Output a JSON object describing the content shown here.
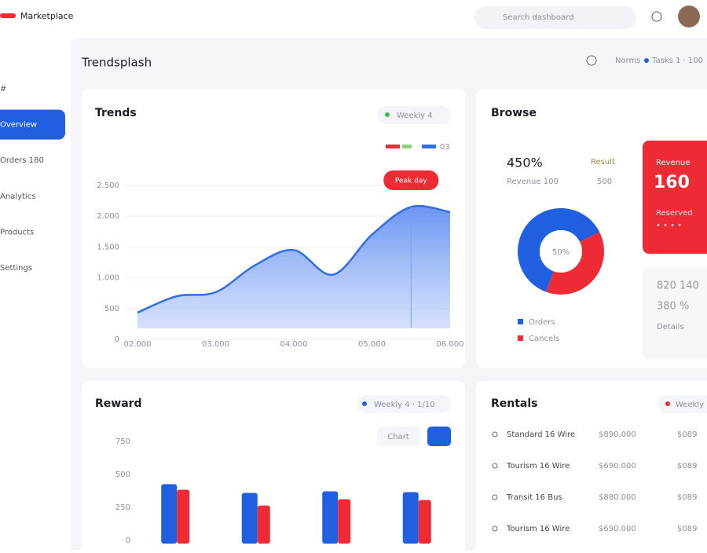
{
  "header": {
    "brand": "Marketplace",
    "search": "Search dashboard"
  },
  "sidebar": {
    "items": [
      "#",
      "Overview",
      "Orders 180",
      "Analytics",
      "Products",
      "Settings"
    ],
    "active": 1
  },
  "page": {
    "title": "Trendsplash",
    "status": "Norms",
    "tasks": "Tasks 1 · 100"
  },
  "trend_card": {
    "filter": "Weekly 4",
    "annotation": "Peak day"
  },
  "transit_card": {
    "filter": "Browse",
    "stat": "450%",
    "stat_label": "Revenue 100",
    "result": "Result",
    "result_value": "500",
    "highlight": {
      "label": "Revenue",
      "value": "160",
      "note": "Reserved",
      "dots": "• • • •"
    },
    "details": {
      "line1": "820 140",
      "line2": "380 %",
      "line3": "Details"
    }
  },
  "reward_card": {
    "filter": "Weekly 4 · 1/10",
    "button": "Chart"
  },
  "rentals": {
    "title": "Rentals",
    "filter": "Weekly",
    "rows": [
      [
        "Standard 16 Wire",
        "$890.000",
        "$089"
      ],
      [
        "Tourism 16 Wire",
        "$690.000",
        "$089"
      ],
      [
        "Transit 16 Bus",
        "$880.000",
        "$089"
      ],
      [
        "Tourism 16 Wire",
        "$690.000",
        "$089"
      ]
    ]
  },
  "chart_data": [
    {
      "type": "area",
      "title": "Trends",
      "x": [
        0,
        1,
        2,
        3,
        4,
        5,
        6,
        7,
        8
      ],
      "series": [
        {
          "name": "03",
          "color": "#2f6fe8",
          "values": [
            434,
            700,
            765,
            1200,
            1450,
            1050,
            1700,
            2150,
            2066
          ]
        }
      ],
      "xlim": [
        0,
        8
      ],
      "xticks": [
        {
          "value": 0,
          "label": "02.000"
        },
        {
          "value": 2,
          "label": "03.000"
        },
        {
          "value": 4,
          "label": "04.000"
        },
        {
          "value": 6,
          "label": "05.000"
        },
        {
          "value": 8,
          "label": "06.000"
        }
      ],
      "ylim": [
        0,
        2500
      ],
      "yticks": [
        0,
        500,
        {
          "value": 1000,
          "label": "1.000"
        },
        {
          "value": 1500,
          "label": "1.500"
        },
        {
          "value": 2000,
          "label": "2.000"
        },
        {
          "value": 2500,
          "label": "2.500"
        }
      ],
      "grid": true
    },
    {
      "type": "donut",
      "center_label": "50%",
      "categories": [
        "Orders",
        "Cancels"
      ],
      "values": [
        62,
        38
      ],
      "colors": [
        "#1f5fe0",
        "#ee2b34"
      ]
    },
    {
      "type": "bar",
      "title": "Reward",
      "categories": [
        null,
        null,
        null,
        null
      ],
      "series": [
        {
          "color": "#1f5fe0",
          "values": [
            450,
            384,
            396,
            390
          ]
        },
        {
          "color": "#ee2b34",
          "values": [
            408,
            288,
            336,
            330
          ]
        }
      ],
      "ylim": [
        0,
        800
      ],
      "yticks": [
        0,
        250,
        500,
        750
      ]
    }
  ]
}
